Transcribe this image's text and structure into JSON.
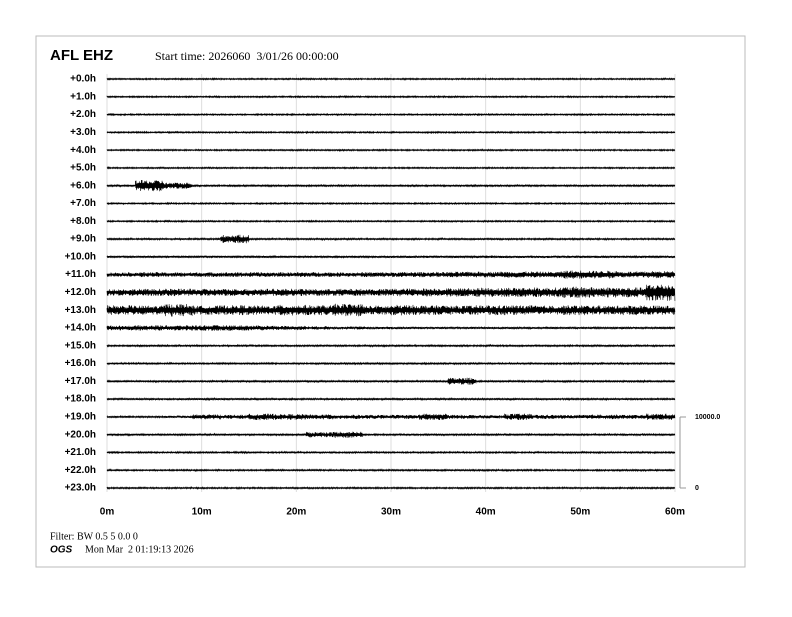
{
  "chart_data": {
    "type": "helicorder",
    "title": "AFL EHZ",
    "subtitle": "Start time: 2026060  3/01/26 00:00:00",
    "rows": [
      "+0.0h",
      "+1.0h",
      "+2.0h",
      "+3.0h",
      "+4.0h",
      "+5.0h",
      "+6.0h",
      "+7.0h",
      "+8.0h",
      "+9.0h",
      "+10.0h",
      "+11.0h",
      "+12.0h",
      "+13.0h",
      "+14.0h",
      "+15.0h",
      "+16.0h",
      "+17.0h",
      "+18.0h",
      "+19.0h",
      "+20.0h",
      "+21.0h",
      "+22.0h",
      "+23.0h"
    ],
    "xlim": [
      0,
      60
    ],
    "xticks": [
      {
        "value": 0,
        "label": "0m"
      },
      {
        "value": 10,
        "label": "10m"
      },
      {
        "value": 20,
        "label": "20m"
      },
      {
        "value": 30,
        "label": "30m"
      },
      {
        "value": 40,
        "label": "40m"
      },
      {
        "value": 50,
        "label": "50m"
      },
      {
        "value": 60,
        "label": "60m"
      }
    ],
    "grid": true,
    "color": "#000000",
    "traces": [
      [
        100,
        100,
        100,
        100,
        100,
        100,
        100,
        100,
        100,
        100,
        100,
        100,
        100,
        100,
        100,
        100,
        100,
        100,
        100,
        100
      ],
      [
        100,
        100,
        100,
        100,
        100,
        100,
        100,
        100,
        100,
        100,
        100,
        100,
        100,
        100,
        100,
        100,
        100,
        100,
        100,
        100
      ],
      [
        100,
        100,
        100,
        100,
        100,
        100,
        100,
        100,
        100,
        100,
        100,
        100,
        100,
        100,
        100,
        100,
        100,
        100,
        100,
        100
      ],
      [
        100,
        100,
        100,
        100,
        100,
        100,
        100,
        100,
        100,
        100,
        100,
        100,
        100,
        100,
        100,
        100,
        100,
        100,
        100,
        100
      ],
      [
        100,
        100,
        100,
        100,
        100,
        100,
        100,
        100,
        100,
        100,
        100,
        100,
        100,
        100,
        100,
        100,
        100,
        100,
        100,
        100
      ],
      [
        100,
        100,
        100,
        100,
        100,
        100,
        100,
        100,
        100,
        100,
        100,
        100,
        100,
        100,
        100,
        100,
        100,
        100,
        100,
        100
      ],
      [
        120,
        800,
        450,
        120,
        120,
        120,
        120,
        120,
        120,
        120,
        120,
        120,
        120,
        120,
        120,
        120,
        120,
        120,
        120,
        120
      ],
      [
        100,
        100,
        100,
        100,
        100,
        100,
        100,
        100,
        100,
        100,
        100,
        100,
        100,
        100,
        100,
        100,
        100,
        100,
        100,
        100
      ],
      [
        100,
        100,
        100,
        100,
        100,
        100,
        100,
        100,
        100,
        100,
        100,
        100,
        100,
        100,
        100,
        100,
        100,
        100,
        100,
        100
      ],
      [
        120,
        120,
        120,
        120,
        600,
        120,
        120,
        120,
        120,
        120,
        120,
        120,
        120,
        120,
        120,
        120,
        120,
        120,
        120,
        120
      ],
      [
        150,
        150,
        150,
        150,
        150,
        150,
        150,
        150,
        150,
        150,
        160,
        160,
        160,
        180,
        170,
        170,
        170,
        160,
        160,
        160
      ],
      [
        320,
        350,
        320,
        330,
        340,
        330,
        340,
        350,
        330,
        350,
        360,
        380,
        400,
        420,
        450,
        420,
        600,
        550,
        450,
        500
      ],
      [
        480,
        500,
        520,
        500,
        500,
        520,
        520,
        480,
        500,
        500,
        550,
        600,
        620,
        650,
        700,
        700,
        800,
        750,
        700,
        1200
      ],
      [
        700,
        650,
        900,
        650,
        700,
        650,
        750,
        700,
        900,
        650,
        750,
        700,
        650,
        700,
        700,
        650,
        700,
        650,
        700,
        650
      ],
      [
        350,
        380,
        380,
        400,
        380,
        350,
        300,
        250,
        220,
        200,
        180,
        160,
        150,
        150,
        150,
        140,
        140,
        140,
        140,
        140
      ],
      [
        120,
        120,
        120,
        120,
        120,
        120,
        120,
        120,
        120,
        120,
        120,
        120,
        120,
        120,
        120,
        120,
        120,
        120,
        120,
        120
      ],
      [
        120,
        120,
        120,
        120,
        120,
        120,
        120,
        120,
        120,
        120,
        120,
        120,
        120,
        120,
        120,
        120,
        120,
        120,
        120,
        120
      ],
      [
        130,
        130,
        130,
        130,
        130,
        130,
        130,
        130,
        130,
        130,
        130,
        130,
        500,
        130,
        130,
        130,
        130,
        130,
        130,
        130
      ],
      [
        130,
        130,
        130,
        130,
        130,
        130,
        130,
        130,
        130,
        130,
        130,
        130,
        130,
        130,
        130,
        130,
        130,
        130,
        130,
        130
      ],
      [
        120,
        120,
        180,
        350,
        300,
        450,
        400,
        350,
        300,
        280,
        300,
        450,
        300,
        250,
        450,
        300,
        280,
        330,
        300,
        450
      ],
      [
        130,
        130,
        130,
        130,
        130,
        130,
        130,
        400,
        450,
        130,
        130,
        130,
        130,
        130,
        130,
        130,
        130,
        130,
        130,
        130
      ],
      [
        110,
        110,
        110,
        110,
        110,
        110,
        110,
        110,
        110,
        110,
        110,
        110,
        110,
        110,
        110,
        110,
        110,
        110,
        110,
        110
      ],
      [
        110,
        110,
        110,
        110,
        110,
        110,
        110,
        110,
        110,
        110,
        110,
        110,
        110,
        110,
        110,
        110,
        110,
        110,
        110,
        110
      ],
      [
        110,
        110,
        110,
        110,
        110,
        110,
        110,
        110,
        110,
        110,
        110,
        110,
        110,
        110,
        110,
        110,
        110,
        110,
        110,
        110
      ]
    ],
    "scale_ylim": [
      0,
      10000
    ],
    "scale_ticks": [
      {
        "value": 10000,
        "label": "10000.0"
      },
      0
    ],
    "filter": "Filter: BW 0.5 5 0.0 0",
    "org": "OGS",
    "date": "Mon Mar  2 01:19:13 2026"
  }
}
